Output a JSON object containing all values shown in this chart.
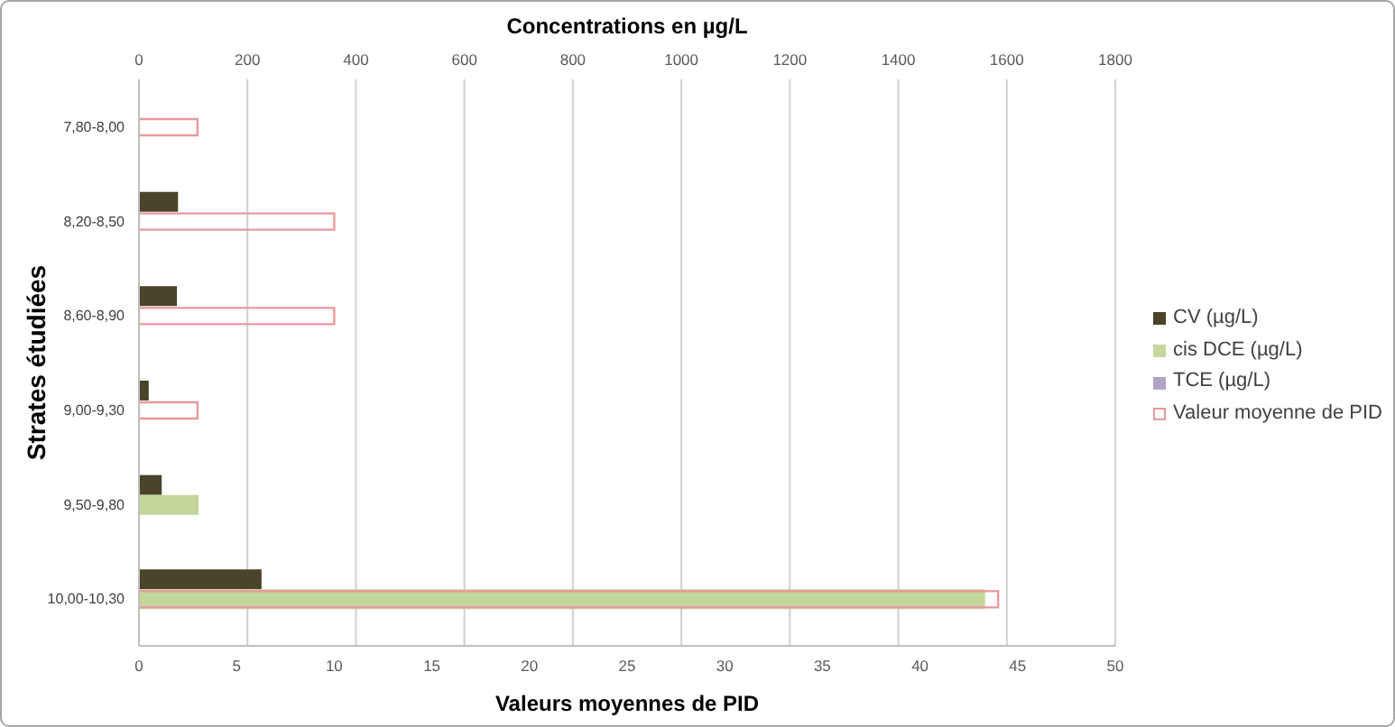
{
  "chart_data": {
    "type": "bar",
    "orientation": "horizontal",
    "categories": [
      "7,80-8,00",
      "8,20-8,50",
      "8,60-8,90",
      "9,00-9,30",
      "9,50-9,80",
      "10,00-10,30"
    ],
    "xlabel": "Valeurs moyennes de PID",
    "x2label": "Concentrations en µg/L",
    "ylabel": "Strates étudiées",
    "xlim": [
      0,
      50
    ],
    "xticks": [
      0,
      5,
      10,
      15,
      20,
      25,
      30,
      35,
      40,
      45,
      50
    ],
    "x2lim": [
      0,
      1800
    ],
    "x2ticks": [
      0,
      200,
      400,
      600,
      800,
      1000,
      1200,
      1400,
      1600,
      1800
    ],
    "grid": "x",
    "legend": "right",
    "series": [
      {
        "name": "CV (µg/L)",
        "color": "#4a452a",
        "axis": "x2",
        "values": [
          null,
          72,
          70,
          18,
          42,
          226
        ]
      },
      {
        "name": "cis DCE (µg/L)",
        "color": "#c3d69b",
        "axis": "x2",
        "values": [
          null,
          null,
          null,
          null,
          110,
          1560
        ]
      },
      {
        "name": "TCE (µg/L)",
        "color": "#b3a2c7",
        "axis": "x2",
        "values": [
          null,
          null,
          null,
          null,
          null,
          null
        ]
      },
      {
        "name": "Valeur moyenne de PID",
        "color": "#e8999b",
        "values": [
          3,
          10,
          10,
          3,
          null,
          44
        ]
      }
    ]
  }
}
